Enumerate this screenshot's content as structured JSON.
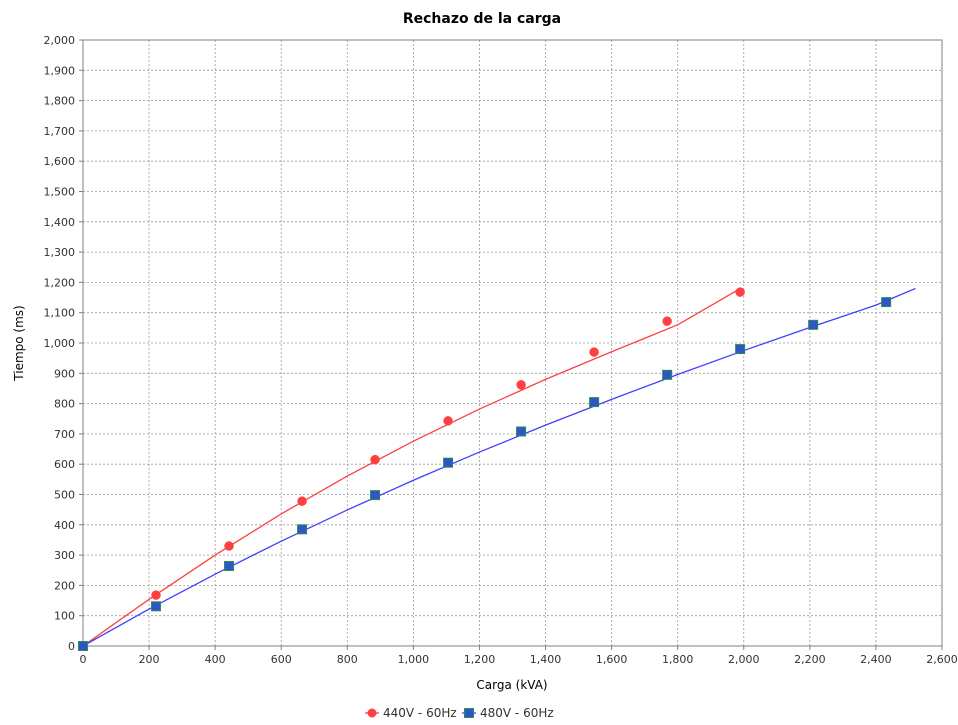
{
  "chart_data": {
    "type": "scatter",
    "title": "Rechazo de la carga",
    "xlabel": "Carga (kVA)",
    "ylabel": "Tiempo (ms)",
    "xlim": [
      0,
      2600
    ],
    "ylim": [
      0,
      2000
    ],
    "x_ticks": [
      "0",
      "200",
      "400",
      "600",
      "800",
      "1,000",
      "1,200",
      "1,400",
      "1,600",
      "1,800",
      "2,000",
      "2,200",
      "2,400",
      "2,600"
    ],
    "y_ticks": [
      "0",
      "100",
      "200",
      "300",
      "400",
      "500",
      "600",
      "700",
      "800",
      "900",
      "1,000",
      "1,100",
      "1,200",
      "1,300",
      "1,400",
      "1,500",
      "1,600",
      "1,700",
      "1,800",
      "1,900",
      "2,000"
    ],
    "grid": true,
    "legend_position": "bottom",
    "series": [
      {
        "name": "440V - 60Hz",
        "color": "#ff4040",
        "marker": "circle",
        "points": [
          [
            0,
            0
          ],
          [
            221,
            168
          ],
          [
            442,
            330
          ],
          [
            663,
            478
          ],
          [
            884,
            615
          ],
          [
            1105,
            743
          ],
          [
            1326,
            862
          ],
          [
            1547,
            970
          ],
          [
            1768,
            1072
          ],
          [
            1989,
            1168
          ]
        ],
        "fit": [
          [
            0,
            0
          ],
          [
            200,
            154
          ],
          [
            400,
            300
          ],
          [
            600,
            436
          ],
          [
            800,
            561
          ],
          [
            1000,
            676
          ],
          [
            1200,
            782
          ],
          [
            1400,
            880
          ],
          [
            1600,
            971
          ],
          [
            1800,
            1060
          ],
          [
            1990,
            1180
          ]
        ]
      },
      {
        "name": "480V - 60Hz",
        "color": "#4040ff",
        "fill": "#2f55c8",
        "marker": "square",
        "points": [
          [
            0,
            0
          ],
          [
            221,
            131
          ],
          [
            442,
            264
          ],
          [
            663,
            385
          ],
          [
            884,
            498
          ],
          [
            1105,
            605
          ],
          [
            1326,
            708
          ],
          [
            1547,
            805
          ],
          [
            1768,
            895
          ],
          [
            1989,
            980
          ],
          [
            2210,
            1060
          ],
          [
            2431,
            1135
          ]
        ],
        "fit": [
          [
            0,
            0
          ],
          [
            200,
            122
          ],
          [
            400,
            237
          ],
          [
            600,
            346
          ],
          [
            800,
            449
          ],
          [
            1000,
            547
          ],
          [
            1200,
            640
          ],
          [
            1400,
            729
          ],
          [
            1600,
            814
          ],
          [
            1800,
            896
          ],
          [
            2000,
            975
          ],
          [
            2200,
            1051
          ],
          [
            2400,
            1125
          ],
          [
            2520,
            1180
          ]
        ]
      }
    ]
  }
}
